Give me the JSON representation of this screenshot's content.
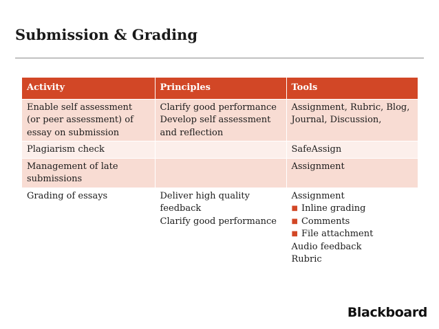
{
  "title": "Submission & Grading",
  "brand": "Blackboard",
  "colors": {
    "header_bg": "#d24726",
    "row_dark": "#f8dcd3",
    "row_light": "#fcefeb",
    "bullet": "#d24726"
  },
  "table": {
    "headers": [
      "Activity",
      "Principles",
      "Tools"
    ],
    "rows": [
      {
        "activity": [
          "Enable self assessment",
          "(or peer assessment) of",
          "essay on submission"
        ],
        "principles": [
          "Clarify good performance",
          "Develop self assessment",
          "and reflection"
        ],
        "tools": [
          "Assignment, Rubric, Blog,",
          "Journal, Discussion,"
        ]
      },
      {
        "activity": [
          "Plagiarism check"
        ],
        "principles": [],
        "tools": [
          "SafeAssign"
        ]
      },
      {
        "activity": [
          "Management of late",
          "submissions"
        ],
        "principles": [],
        "tools": [
          "Assignment"
        ]
      },
      {
        "activity": [
          "Grading of essays"
        ],
        "principles": [
          "Deliver high quality",
          "feedback",
          "Clarify good performance"
        ],
        "tools": [
          "Assignment"
        ],
        "tools_bullets": [
          "Inline grading",
          "Comments",
          "File attachment"
        ],
        "tools_after": [
          "Audio feedback",
          "Rubric"
        ]
      }
    ]
  }
}
